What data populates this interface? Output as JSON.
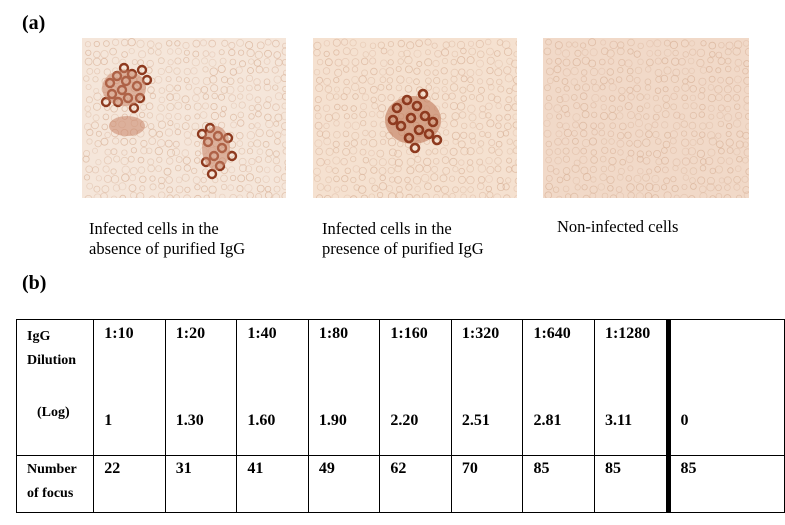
{
  "panel_a_label": "(a)",
  "panel_b_label": "(b)",
  "images": [
    {
      "caption_line1": "Infected cells in the",
      "caption_line2": "absence of purified IgG"
    },
    {
      "caption_line1": "Infected cells in the",
      "caption_line2": "presence of purified IgG"
    },
    {
      "caption_line1": "Non-infected cells",
      "caption_line2": ""
    }
  ],
  "table": {
    "row_header_line1": "IgG",
    "row_header_line2": "Dilution",
    "row_header_log": "(Log)",
    "count_header_line1": "Number",
    "count_header_line2": "of focus",
    "columns": [
      {
        "dilution": "1:10",
        "log": "1",
        "count": "22"
      },
      {
        "dilution": "1:20",
        "log": "1.30",
        "count": "31"
      },
      {
        "dilution": "1:40",
        "log": "1.60",
        "count": "41"
      },
      {
        "dilution": "1:80",
        "log": "1.90",
        "count": "49"
      },
      {
        "dilution": "1:160",
        "log": "2.20",
        "count": "62"
      },
      {
        "dilution": "1:320",
        "log": "2.51",
        "count": "70"
      },
      {
        "dilution": "1:640",
        "log": "2.81",
        "count": "85"
      },
      {
        "dilution": "1:1280",
        "log": "3.11",
        "count": "85"
      },
      {
        "dilution": "",
        "log": "0",
        "count": "85"
      }
    ]
  },
  "colors": {
    "cell_background": "#f3e3d6",
    "cell_outline": "#d9b39a",
    "stained_cell": "#8e3a1f"
  }
}
